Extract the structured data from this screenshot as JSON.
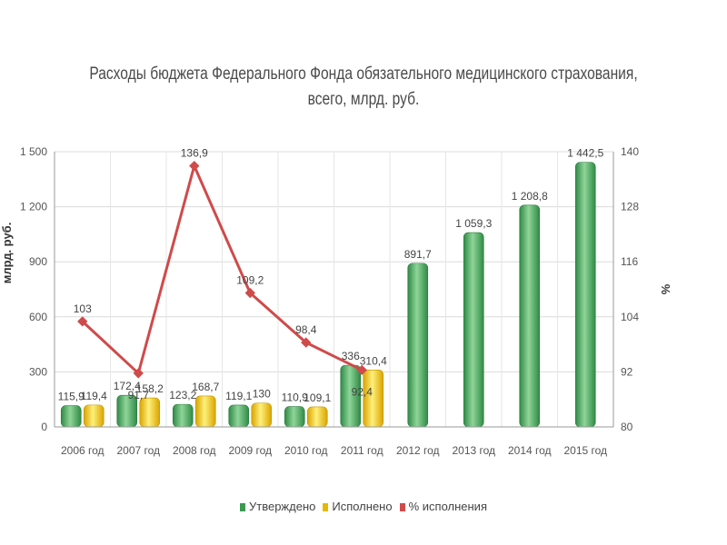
{
  "chart_data": {
    "type": "bar",
    "title": [
      "Расходы бюджета Федерального Фонда обязательного медицинского страхования,",
      "всего, млрд. руб."
    ],
    "categories": [
      "2006 год",
      "2007 год",
      "2008 год",
      "2009 год",
      "2010 год",
      "2011 год",
      "2012 год",
      "2013 год",
      "2014 год",
      "2015 год"
    ],
    "ylabel": "млрд. руб.",
    "y2label": "%",
    "ylim": [
      0,
      1500
    ],
    "y2lim": [
      80,
      140
    ],
    "yticks": [
      "0",
      "300",
      "600",
      "900",
      "1 200",
      "1 500"
    ],
    "y2ticks": [
      "80",
      "92",
      "104",
      "116",
      "128",
      "140"
    ],
    "grid": true,
    "legend_position": "bottom",
    "series": [
      {
        "name": "Утверждено",
        "type": "bar",
        "axis": "left",
        "color": "#5cb85c",
        "values": [
          115.9,
          172.4,
          123.2,
          119.1,
          110.9,
          336,
          891.7,
          1059.3,
          1208.8,
          1442.5
        ],
        "labels": [
          "115,9",
          "172,4",
          "123,2",
          "119,1",
          "110,9",
          "336",
          "891,7",
          "1 059,3",
          "1 208,8",
          "1 442,5"
        ]
      },
      {
        "name": "Исполнено",
        "type": "bar",
        "axis": "left",
        "color": "#f0c419",
        "values": [
          119.4,
          158.2,
          168.7,
          130,
          109.1,
          310.4,
          null,
          null,
          null,
          null
        ],
        "labels": [
          "119,4",
          "158,2",
          "168,7",
          "130",
          "109,1",
          "310,4",
          "",
          "",
          "",
          ""
        ]
      },
      {
        "name": "% исполнения",
        "type": "line",
        "axis": "right",
        "color": "#d04a4a",
        "values": [
          103,
          91.7,
          136.9,
          109.2,
          98.4,
          92.4,
          null,
          null,
          null,
          null
        ],
        "labels": [
          "103",
          "91,7",
          "136,9",
          "109,2",
          "98,4",
          "92,4",
          "",
          "",
          "",
          ""
        ]
      }
    ]
  }
}
